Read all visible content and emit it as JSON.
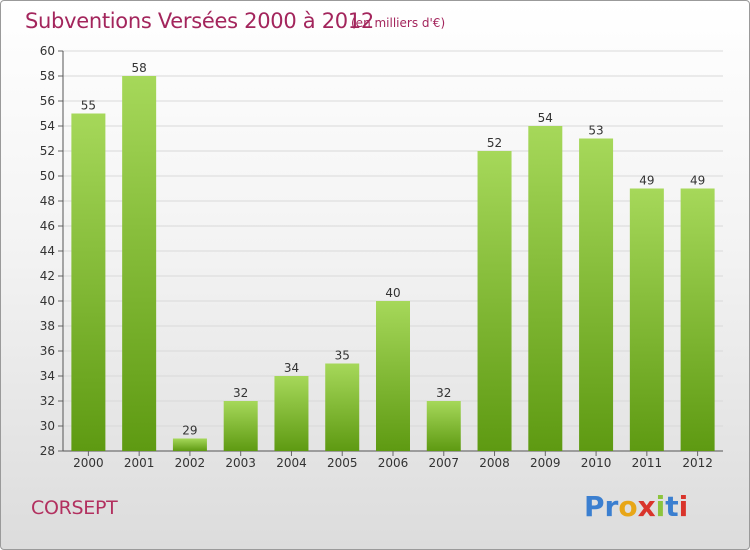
{
  "title": "Subventions Versées 2000 à 2012",
  "unit_note": "(en milliers d'€)",
  "commune": "CORSEPT",
  "logo": {
    "text": "Proxiti",
    "letters": [
      "P",
      "r",
      "o",
      "x",
      "i",
      "t",
      "i"
    ],
    "colors": [
      "#3b7fd0",
      "#3b7fd0",
      "#e8a617",
      "#d9342b",
      "#8cc43c",
      "#3b7fd0",
      "#d9342b"
    ]
  },
  "colors": {
    "bar_light": "#a6d85a",
    "bar_dark": "#5e9a12",
    "title": "#a3255c",
    "grid": "#d9d9d9"
  },
  "chart_data": {
    "type": "bar",
    "title": "Subventions Versées 2000 à 2012",
    "categories": [
      "2000",
      "2001",
      "2002",
      "2003",
      "2004",
      "2005",
      "2006",
      "2007",
      "2008",
      "2009",
      "2010",
      "2011",
      "2012"
    ],
    "values": [
      55,
      58,
      29,
      32,
      34,
      35,
      40,
      32,
      52,
      54,
      53,
      49,
      49
    ],
    "ylim": [
      28,
      60
    ],
    "yticks": [
      28,
      30,
      32,
      34,
      36,
      38,
      40,
      42,
      44,
      46,
      48,
      50,
      52,
      54,
      56,
      58,
      60
    ],
    "grid": true,
    "data_labels": true
  }
}
